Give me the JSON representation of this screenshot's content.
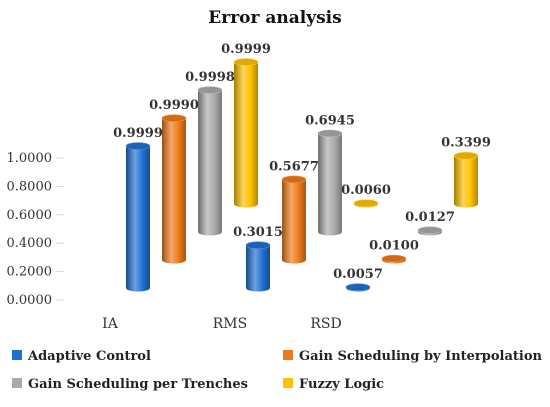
{
  "chart_data": {
    "type": "bar",
    "title": "Error analysis",
    "xlabel": "",
    "ylabel": "",
    "categories": [
      "IA",
      "RMS",
      "RSD"
    ],
    "ylim": [
      0,
      1.0
    ],
    "yticks": [
      "0.0000",
      "0.2000",
      "0.4000",
      "0.6000",
      "0.8000",
      "1.0000"
    ],
    "grid": false,
    "legend_position": "bottom",
    "style": "3d-cylinder",
    "series": [
      {
        "name": "Adaptive Control",
        "color": "#1f6fd1",
        "values": [
          0.9999,
          0.3015,
          0.0057
        ],
        "labels": [
          "0.9999",
          "0.3015",
          "0.0057"
        ]
      },
      {
        "name": "Gain Scheduling by Interpolation",
        "color": "#ef7a1a",
        "values": [
          0.999,
          0.5677,
          0.01
        ],
        "labels": [
          "0.9990",
          "0.5677",
          "0.0100"
        ]
      },
      {
        "name": "Gain Scheduling per Trenches",
        "color": "#a9a9a9",
        "values": [
          0.9998,
          0.6945,
          0.0127
        ],
        "labels": [
          "0.9998",
          "0.6945",
          "0.0127"
        ]
      },
      {
        "name": "Fuzzy Logic",
        "color": "#ffc000",
        "values": [
          0.9999,
          0.006,
          0.3399
        ],
        "labels": [
          "0.9999",
          "0.0060",
          "0.3399"
        ]
      }
    ]
  }
}
